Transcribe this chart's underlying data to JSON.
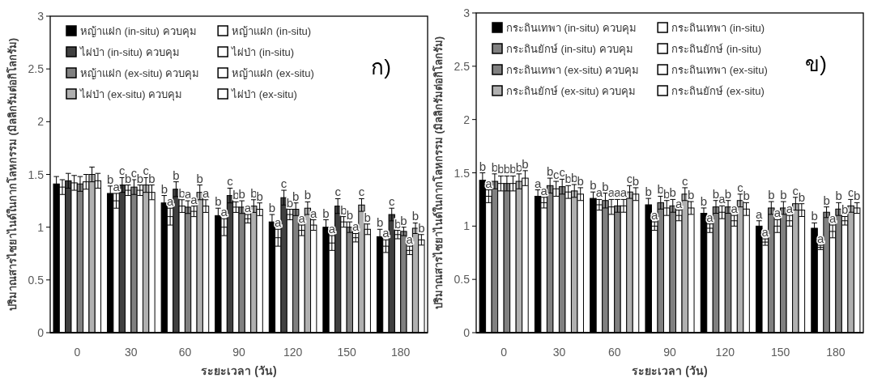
{
  "chart_data": [
    {
      "type": "bar",
      "categories": [
        "0",
        "30",
        "60",
        "90",
        "120",
        "150",
        "180"
      ],
      "xlabel": "ระยะเวลา (วัน)",
      "ylabel": "ปริมาณสารไซยาไนด์ในกากโลหกรรม (มิลลิกรัมต่อกิโลกรัม)",
      "ylim": [
        0,
        3
      ],
      "yticks": [
        0,
        0.5,
        1,
        1.5,
        2,
        2.5,
        3
      ],
      "legend": "top left",
      "annotations": [
        "ก)"
      ],
      "series": [
        {
          "name": "หญ้าแฝก (in-situ) ควบคุม",
          "color": "#000000",
          "values": [
            1.41,
            1.32,
            1.23,
            1.11,
            1.05,
            1.0,
            0.91
          ],
          "errors": [
            0.07,
            0.07,
            0.07,
            0.07,
            0.07,
            0.07,
            0.07
          ],
          "value_labels": [
            null,
            "b",
            "b",
            "b",
            "b",
            "b",
            "b"
          ]
        },
        {
          "name": "หญ้าแฝก (in-situ)",
          "color": "#ffffff",
          "values": [
            1.38,
            1.25,
            1.1,
            1.0,
            0.9,
            0.85,
            0.82
          ],
          "errors": [
            0.07,
            0.07,
            0.08,
            0.08,
            0.08,
            0.07,
            0.06
          ],
          "value_labels": [
            null,
            "a",
            "a",
            "a",
            "a",
            "a",
            "a"
          ]
        },
        {
          "name": "ไผ่ป่า (in-situ) ควบคุม",
          "color": "#404040",
          "values": [
            1.44,
            1.4,
            1.36,
            1.3,
            1.28,
            1.2,
            1.12
          ],
          "errors": [
            0.07,
            0.07,
            0.07,
            0.07,
            0.07,
            0.07,
            0.06
          ],
          "value_labels": [
            null,
            "c",
            "b",
            "c",
            "c",
            "c",
            "c"
          ]
        },
        {
          "name": "ไผ่ป่า (in-situ)",
          "color": "#ffffff",
          "values": [
            1.42,
            1.35,
            1.2,
            1.19,
            1.12,
            1.05,
            0.93
          ],
          "errors": [
            0.07,
            0.05,
            0.06,
            0.05,
            0.05,
            0.05,
            0.04
          ],
          "value_labels": [
            null,
            "b",
            "b",
            "b",
            "b",
            "b",
            "b"
          ]
        },
        {
          "name": "หญ้าแฝก (ex-situ) ควบคุม",
          "color": "#808080",
          "values": [
            1.41,
            1.38,
            1.19,
            1.19,
            1.17,
            1.0,
            0.96
          ],
          "errors": [
            0.07,
            0.07,
            0.06,
            0.06,
            0.06,
            0.05,
            0.04
          ],
          "value_labels": [
            null,
            "c",
            "a",
            "b",
            "b",
            "b",
            "b"
          ]
        },
        {
          "name": "หญ้าแฝก (ex-situ)",
          "color": "#ffffff",
          "values": [
            1.43,
            1.35,
            1.15,
            1.08,
            0.97,
            0.9,
            0.78
          ],
          "errors": [
            0.07,
            0.05,
            0.05,
            0.04,
            0.05,
            0.04,
            0.04
          ],
          "value_labels": [
            null,
            "b",
            "a",
            "a",
            "a",
            "a",
            "a"
          ]
        },
        {
          "name": "ไผ่ป่า (ex-situ) ควบคุม",
          "color": "#b0b0b0",
          "values": [
            1.5,
            1.4,
            1.33,
            1.2,
            1.18,
            1.21,
            0.99
          ],
          "errors": [
            0.07,
            0.07,
            0.07,
            0.06,
            0.06,
            0.06,
            0.05
          ],
          "value_labels": [
            null,
            "c",
            "b",
            "b",
            "b",
            "c",
            "b"
          ]
        },
        {
          "name": "ไผ่ป่า (ex-situ)",
          "color": "#ffffff",
          "values": [
            1.44,
            1.33,
            1.2,
            1.17,
            1.02,
            0.98,
            0.88
          ],
          "errors": [
            0.07,
            0.07,
            0.06,
            0.06,
            0.05,
            0.05,
            0.05
          ],
          "value_labels": [
            null,
            "b",
            "a",
            "b",
            "a",
            "b",
            "b"
          ]
        }
      ]
    },
    {
      "type": "bar",
      "categories": [
        "0",
        "30",
        "60",
        "90",
        "120",
        "150",
        "180"
      ],
      "xlabel": "ระยะเวลา (วัน)",
      "ylabel": "ปริมาณสารไซยาไนด์ในกากโลหกรรม  (มิลลิกรัมต่อกิโลกรัม)",
      "ylim": [
        0,
        3
      ],
      "yticks": [
        0,
        0.5,
        1,
        1.5,
        2,
        2.5,
        3
      ],
      "legend": "top left",
      "annotations": [
        "ข)"
      ],
      "series": [
        {
          "name": "กระถินเทพา (in-situ) ควบคุม",
          "color": "#000000",
          "values": [
            1.43,
            1.28,
            1.26,
            1.2,
            1.12,
            1.0,
            0.98
          ],
          "errors": [
            0.07,
            0.06,
            0.06,
            0.06,
            0.05,
            0.05,
            0.05
          ],
          "value_labels": [
            "b",
            "a",
            "b",
            "b",
            "b",
            "a",
            "b"
          ]
        },
        {
          "name": "กระถินเทพา (in-situ)",
          "color": "#ffffff",
          "values": [
            1.28,
            1.22,
            1.2,
            1.0,
            0.98,
            0.85,
            0.8
          ],
          "errors": [
            0.06,
            0.05,
            0.05,
            0.04,
            0.04,
            0.03,
            0.02
          ],
          "value_labels": [
            "a",
            "a",
            "a",
            "a",
            "a",
            "a",
            "a"
          ]
        },
        {
          "name": "กระถินยักษ์ (in-situ) ควบคุม",
          "color": "#808080",
          "values": [
            1.42,
            1.38,
            1.24,
            1.22,
            1.18,
            1.17,
            1.13
          ],
          "errors": [
            0.07,
            0.07,
            0.07,
            0.06,
            0.06,
            0.06,
            0.05
          ],
          "value_labels": [
            "b",
            "b",
            "b",
            "b",
            "b",
            "b",
            "b"
          ]
        },
        {
          "name": "กระถินยักษ์ (in-situ)",
          "color": "#ffffff",
          "values": [
            1.4,
            1.35,
            1.18,
            1.17,
            1.13,
            1.0,
            0.95
          ],
          "errors": [
            0.07,
            0.07,
            0.07,
            0.07,
            0.06,
            0.06,
            0.06
          ],
          "value_labels": [
            "b",
            "c",
            "a",
            "b",
            "a",
            "a",
            "a"
          ]
        },
        {
          "name": "กระถินเทพา (ex-situ) ควบคุม",
          "color": "#808080",
          "values": [
            1.4,
            1.37,
            1.19,
            1.19,
            1.18,
            1.17,
            1.16
          ],
          "errors": [
            0.07,
            0.07,
            0.06,
            0.06,
            0.06,
            0.06,
            0.06
          ],
          "value_labels": [
            "b",
            "c",
            "a",
            "b",
            "b",
            "b",
            "b"
          ]
        },
        {
          "name": "กระถินเทพา (ex-situ)",
          "color": "#ffffff",
          "values": [
            1.4,
            1.32,
            1.19,
            1.1,
            1.05,
            1.05,
            1.05
          ],
          "errors": [
            0.07,
            0.06,
            0.06,
            0.05,
            0.05,
            0.05,
            0.04
          ],
          "value_labels": [
            "b",
            "b",
            "a",
            "a",
            "a",
            "a",
            "b"
          ]
        },
        {
          "name": "กระถินยักษ์ (ex-situ) ควบคุม",
          "color": "#b0b0b0",
          "values": [
            1.42,
            1.33,
            1.32,
            1.3,
            1.24,
            1.21,
            1.19
          ],
          "errors": [
            0.07,
            0.06,
            0.06,
            0.06,
            0.06,
            0.06,
            0.06
          ],
          "value_labels": [
            "b",
            "b",
            "c",
            "c",
            "c",
            "c",
            "c"
          ]
        },
        {
          "name": "กระถินยักษ์ (ex-situ)",
          "color": "#ffffff",
          "values": [
            1.45,
            1.3,
            1.3,
            1.17,
            1.16,
            1.15,
            1.17
          ],
          "errors": [
            0.07,
            0.06,
            0.06,
            0.06,
            0.06,
            0.06,
            0.05
          ],
          "value_labels": [
            "b",
            "b",
            "b",
            "b",
            "b",
            "b",
            "b"
          ]
        }
      ]
    }
  ]
}
